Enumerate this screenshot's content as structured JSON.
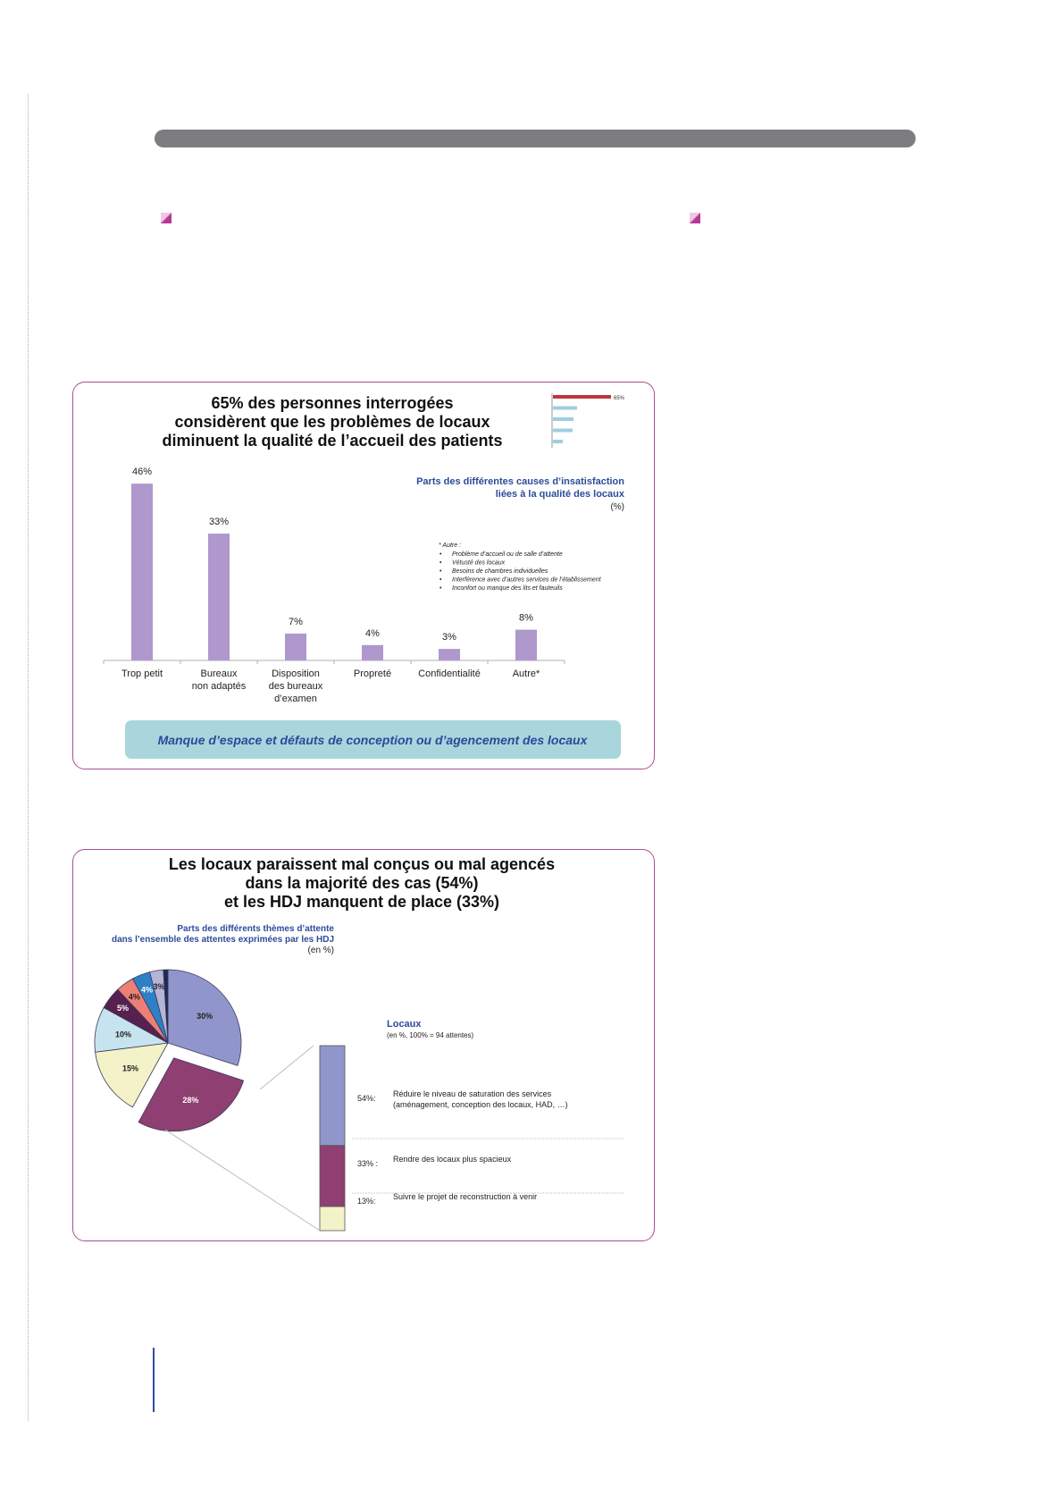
{
  "chart_data": [
    {
      "type": "bar",
      "title": "65% des personnes interrogées considèrent que les problèmes de locaux diminuent la qualité de l’accueil des patients",
      "title_lines": [
        "65% des personnes interrogées",
        "considèrent que les problèmes de locaux",
        "diminuent la qualité de l’accueil des patients"
      ],
      "subtitle_lines": [
        "Parts des différentes causes d’insatisfaction",
        "liées à la qualité des locaux",
        "(%)"
      ],
      "categories": [
        "Trop petit",
        "Bureaux non adaptés",
        "Disposition des bureaux d’examen",
        "Propreté",
        "Confidentialité",
        "Autre*"
      ],
      "category_lines": [
        [
          "Trop petit"
        ],
        [
          "Bureaux",
          "non adaptés"
        ],
        [
          "Disposition",
          "des bureaux",
          "d’examen"
        ],
        [
          "Propreté"
        ],
        [
          "Confidentialité"
        ],
        [
          "Autre*"
        ]
      ],
      "values": [
        46,
        33,
        7,
        4,
        3,
        8
      ],
      "value_labels": [
        "46%",
        "33%",
        "7%",
        "4%",
        "3%",
        "8%"
      ],
      "ylim": [
        0,
        50
      ],
      "bar_color": "#ae98cc",
      "footnote_title": "* Autre :",
      "footnote_items": [
        "Problème d’accueil ou de salle d’attente",
        "Vétusté des locaux",
        "Besoins de chambres individuelles",
        "Interférence avec d’autres services de l’établissement",
        "Inconfort ou manque des lits et fauteuils"
      ],
      "conclusion": "Manque d’espace et défauts de conception ou d’agencement des locaux",
      "mini_chart": {
        "label": "65%",
        "values": [
          65,
          27,
          23,
          22,
          11
        ],
        "highlight_color": "#c0343b",
        "color": "#9fcfdc"
      }
    },
    {
      "type": "pie",
      "title": "Les locaux paraissent mal conçus ou mal agencés dans la majorité des cas (54%) et les HDJ manquent de place (33%)",
      "title_lines": [
        "Les locaux paraissent mal conçus ou mal agencés",
        "dans la majorité des cas (54%)",
        "et les HDJ manquent de place (33%)"
      ],
      "subtitle_lines": [
        "Parts des différents thèmes d’attente",
        "dans l’ensemble des attentes exprimées par les HDJ",
        "(en %)"
      ],
      "slices": [
        {
          "label": "30%",
          "value": 30,
          "color": "#9096cc",
          "label_color": "#222222"
        },
        {
          "label": "28%",
          "value": 28,
          "color": "#8f3f72",
          "label_color": "#ffffff",
          "exploded": true
        },
        {
          "label": "15%",
          "value": 15,
          "color": "#f3f2c8",
          "label_color": "#222222"
        },
        {
          "label": "10%",
          "value": 10,
          "color": "#c6e4ef",
          "label_color": "#222222"
        },
        {
          "label": "5%",
          "value": 5,
          "color": "#57204f",
          "label_color": "#ffffff"
        },
        {
          "label": "4%",
          "value": 4,
          "color": "#ee7f76",
          "label_color": "#222222"
        },
        {
          "label": "4%",
          "value": 4,
          "color": "#2f7fc6",
          "label_color": "#ffffff"
        },
        {
          "label": "3%",
          "value": 3,
          "color": "#b5b5d8",
          "label_color": "#222222"
        },
        {
          "label": "",
          "value": 1,
          "color": "#1e2a55",
          "label_color": "#ffffff"
        }
      ],
      "breakdown": {
        "title": "Locaux",
        "subtitle": "(en %, 100% = 94 attentes)",
        "items": [
          {
            "pct_label": "54%:",
            "value": 54,
            "color": "#9096cc",
            "text_lines": [
              "Réduire le niveau de saturation des services",
              "(aménagement, conception des locaux, HAD, …)"
            ]
          },
          {
            "pct_label": "33% :",
            "value": 33,
            "color": "#8f3f72",
            "text_lines": [
              "Rendre des locaux plus spacieux"
            ]
          },
          {
            "pct_label": "13%:",
            "value": 13,
            "color": "#f3f2c8",
            "text_lines": [
              "Suivre le projet de reconstruction à venir"
            ]
          }
        ]
      }
    }
  ]
}
